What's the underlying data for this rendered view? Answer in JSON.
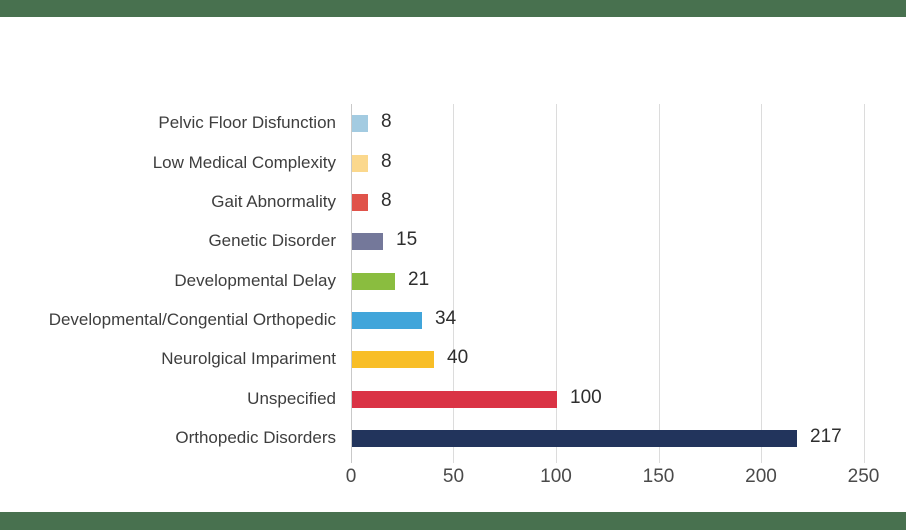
{
  "page": {
    "background_color": "#FFFFFF",
    "top_band_color": "#48714F",
    "bottom_band_color": "#48714F"
  },
  "chart_data": {
    "type": "bar",
    "orientation": "horizontal",
    "title": "",
    "xlabel": "",
    "ylabel": "",
    "grid": true,
    "value_labels": true,
    "x_ticks": [
      0,
      50,
      100,
      150,
      200,
      250
    ],
    "xlim": [
      0,
      258
    ],
    "categories_top_to_bottom": [
      "Pelvic Floor Disfunction",
      "Low Medical Complexity",
      "Gait Abnormality",
      "Genetic Disorder",
      "Developmental Delay",
      "Developmental/Congential Orthopedic",
      "Neurolgical Impariment",
      "Unspecified",
      "Orthopedic Disorders"
    ],
    "values": [
      8,
      8,
      8,
      15,
      21,
      34,
      40,
      100,
      217
    ],
    "bar_colors": [
      "#A3CBE1",
      "#FBD88D",
      "#E0534A",
      "#74789A",
      "#8ABD3F",
      "#41A5DA",
      "#F8BE27",
      "#DA3345",
      "#22345C"
    ],
    "gridline_color": "#DCDCDC",
    "category_label_color": "#3E3E3E",
    "value_label_color": "#2E2E2E",
    "tick_label_color": "#4A4A4A"
  }
}
